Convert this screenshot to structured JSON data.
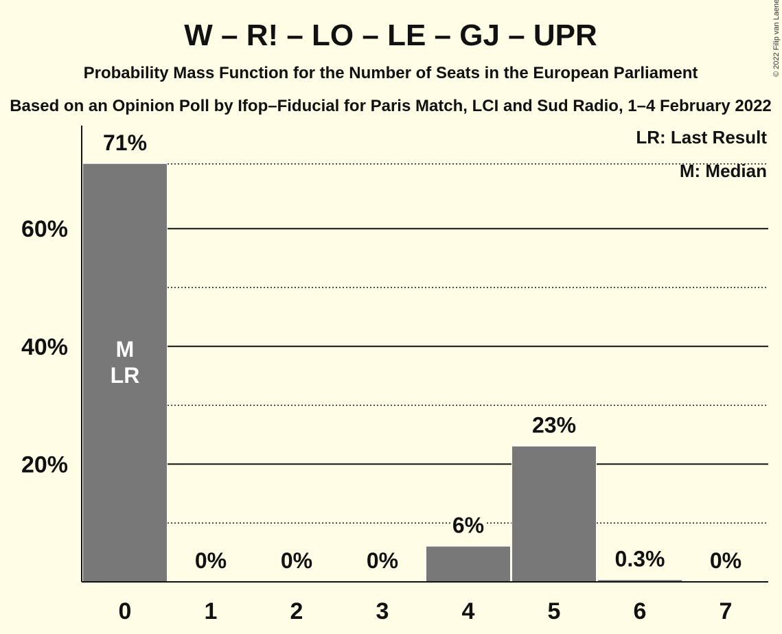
{
  "chart_data": {
    "type": "bar",
    "title": "W – R! – LO – LE – GJ – UPR",
    "subtitle": "Probability Mass Function for the Number of Seats in the European Parliament",
    "source": "Based on an Opinion Poll by Ifop–Fiducial for Paris Match, LCI and Sud Radio, 1–4 February 2022",
    "copyright": "© 2022 Filip van Laenen",
    "categories": [
      "0",
      "1",
      "2",
      "3",
      "4",
      "5",
      "6",
      "7"
    ],
    "values": [
      71,
      0,
      0,
      0,
      6,
      23,
      0.3,
      0
    ],
    "data_labels": [
      "71%",
      "0%",
      "0%",
      "0%",
      "6%",
      "23%",
      "0.3%",
      "0%"
    ],
    "ylim": [
      0,
      75
    ],
    "y_ticks": [
      20,
      40,
      60
    ],
    "y_tick_labels": [
      "20%",
      "40%",
      "60%"
    ],
    "y_minor_gridlines": [
      10,
      30,
      50,
      71
    ],
    "bar_color": "#787878",
    "background": "#FFFDE6",
    "legend": {
      "placement": "top-right",
      "items": [
        "LR: Last Result",
        "M: Median"
      ]
    },
    "annotations": [
      {
        "category": "0",
        "lines": [
          "M",
          "LR"
        ]
      }
    ]
  }
}
